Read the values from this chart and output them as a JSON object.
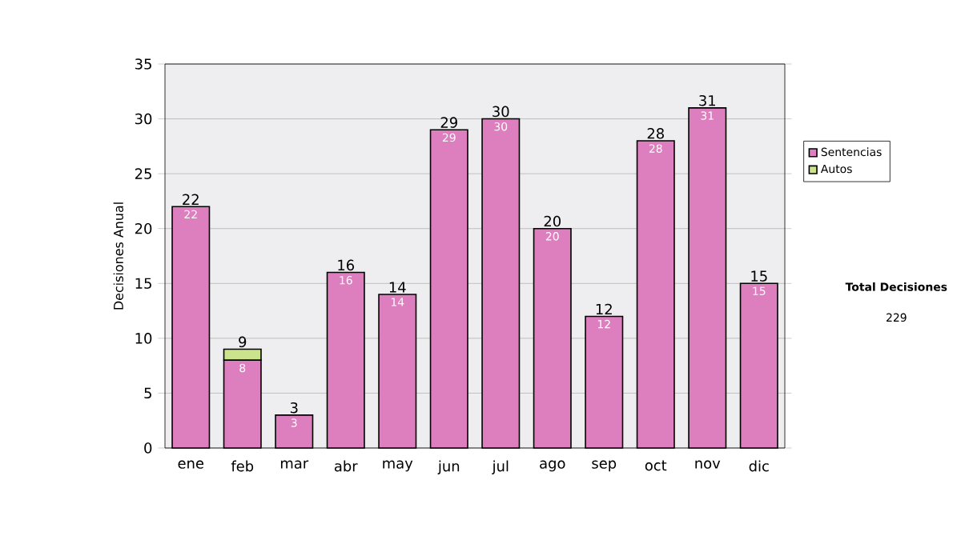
{
  "chart_data": {
    "type": "bar",
    "stacked": true,
    "ylabel": "Decisiones Anual",
    "categories": [
      "ene",
      "feb",
      "mar",
      "abr",
      "may",
      "jun",
      "jul",
      "ago",
      "sep",
      "oct",
      "nov",
      "dic"
    ],
    "series": [
      {
        "name": "Sentencias",
        "color": "#dd7fbf",
        "values": [
          22,
          8,
          3,
          16,
          14,
          29,
          30,
          20,
          12,
          28,
          31,
          15
        ],
        "value_labels": [
          "22",
          "8",
          "3",
          "16",
          "14",
          "29",
          "30",
          "20",
          "12",
          "28",
          "31",
          "15"
        ]
      },
      {
        "name": "Autos",
        "color": "#cce38e",
        "values": [
          null,
          1,
          null,
          null,
          null,
          null,
          null,
          null,
          null,
          null,
          null,
          null
        ]
      }
    ],
    "totals": [
      "22",
      "9",
      "3",
      "16",
      "14",
      "29",
      "30",
      "20",
      "12",
      "28",
      "31",
      "15"
    ],
    "ylim": [
      0,
      35
    ],
    "yticks": [
      0,
      5,
      10,
      15,
      20,
      25,
      30,
      35
    ],
    "grid": "y",
    "legend": "right",
    "annotations": [
      "Total Decisiones",
      "229"
    ]
  }
}
